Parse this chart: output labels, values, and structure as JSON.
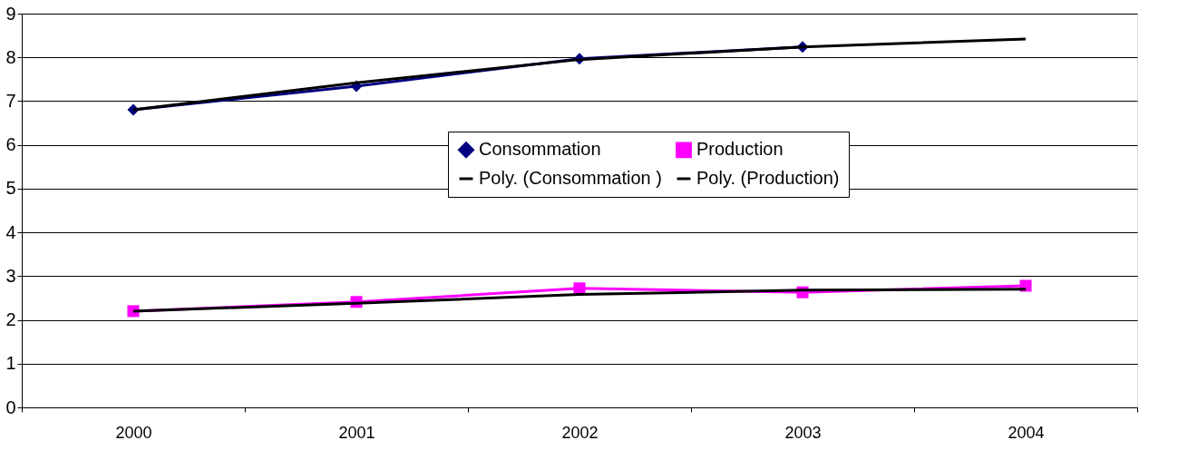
{
  "chart_data": {
    "type": "line",
    "categories": [
      "2000",
      "2001",
      "2002",
      "2003",
      "2004"
    ],
    "series": [
      {
        "name": "Consommation",
        "color": "#000080",
        "marker": "diamond",
        "values": [
          6.8,
          7.34,
          7.97,
          8.24,
          null
        ]
      },
      {
        "name": "Production",
        "color": "#ff00ff",
        "marker": "square",
        "values": [
          2.2,
          2.41,
          2.72,
          2.63,
          2.78
        ]
      },
      {
        "name": "Poly. (Consommation )",
        "color": "#000000",
        "marker": "none",
        "values": [
          6.8,
          7.42,
          7.95,
          8.24,
          8.42
        ]
      },
      {
        "name": "Poly. (Production)",
        "color": "#000000",
        "marker": "none",
        "values": [
          2.2,
          2.38,
          2.58,
          2.68,
          2.7
        ]
      }
    ],
    "ylim": [
      0,
      9
    ],
    "yticks": [
      0,
      1,
      2,
      3,
      4,
      5,
      6,
      7,
      8,
      9
    ],
    "grid": "y",
    "legend": "right",
    "line_style": "solid"
  }
}
